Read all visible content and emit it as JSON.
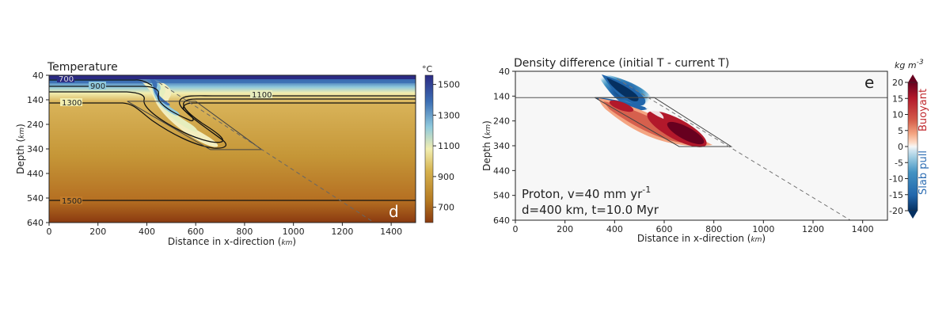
{
  "chart_data": [
    {
      "type": "heatmap",
      "title": "Temperature",
      "panel_label": "d",
      "xlabel_prefix": "Distance in x-direction",
      "xlabel_unit": "km",
      "ylabel_prefix": "Depth",
      "ylabel_unit": "km",
      "xlim": [
        0,
        1500
      ],
      "ylim": [
        640,
        40
      ],
      "x_ticks": [
        0,
        200,
        400,
        600,
        800,
        1000,
        1200,
        1400
      ],
      "y_ticks": [
        40,
        140,
        240,
        340,
        440,
        540,
        640
      ],
      "colorbar": {
        "unit": "°C",
        "range": [
          600,
          1560
        ],
        "ticks": [
          700,
          900,
          1100,
          1300,
          1500
        ],
        "colors": [
          "#2b2a83",
          "#3c6fb4",
          "#8fc9dc",
          "#f2eeb0",
          "#d6b24e",
          "#b57a22",
          "#8a3a10"
        ]
      },
      "contours": [
        {
          "level": "700",
          "label": "700"
        },
        {
          "level": "900",
          "label": "900"
        },
        {
          "level": "1100",
          "label": "1100"
        },
        {
          "level": "1300",
          "label": "1300"
        },
        {
          "level": "1500",
          "label": "1500"
        }
      ],
      "slab_outline": [
        [
          320,
          146
        ],
        [
          600,
          146
        ],
        [
          870,
          343
        ],
        [
          660,
          343
        ],
        [
          320,
          146
        ]
      ],
      "dashed_line": [
        [
          450,
          70
        ],
        [
          1330,
          640
        ]
      ]
    },
    {
      "type": "heatmap",
      "title": "Density difference  (initial T - current T)",
      "panel_label": "e",
      "xlabel_prefix": "Distance in x-direction",
      "xlabel_unit": "km",
      "ylabel_prefix": "Depth",
      "ylabel_unit": "km",
      "xlim": [
        0,
        1500
      ],
      "ylim": [
        640,
        40
      ],
      "x_ticks": [
        0,
        200,
        400,
        600,
        800,
        1000,
        1200,
        1400
      ],
      "y_ticks": [
        40,
        140,
        240,
        340,
        440,
        540,
        640
      ],
      "annotation_line1": "Proton, v=40 mm yr",
      "annotation_line1_sup": "-1",
      "annotation_line2": "d=400 km, t=10.0 Myr",
      "colorbar": {
        "unit_prefix": "kg m",
        "unit_sup": "-3",
        "range": [
          -20,
          20
        ],
        "ticks": [
          20,
          15,
          10,
          5,
          0,
          -5,
          -10,
          -15,
          -20
        ],
        "label_top": "Buoyant",
        "label_bottom": "Slab pull",
        "label_top_color": "#c0282d",
        "label_bottom_color": "#2c6db3",
        "colors": [
          "#67001f",
          "#b2182b",
          "#d6604d",
          "#f4a582",
          "#fddbc7",
          "#f7f7f7",
          "#d1e5f0",
          "#92c5de",
          "#4393c3",
          "#2166ac",
          "#053061"
        ]
      },
      "slab_outline": [
        [
          320,
          146
        ],
        [
          560,
          146
        ],
        [
          870,
          343
        ],
        [
          660,
          343
        ],
        [
          320,
          146
        ]
      ],
      "layer_line_depth": 146,
      "dashed_line": [
        [
          410,
          70
        ],
        [
          1350,
          640
        ]
      ]
    }
  ]
}
